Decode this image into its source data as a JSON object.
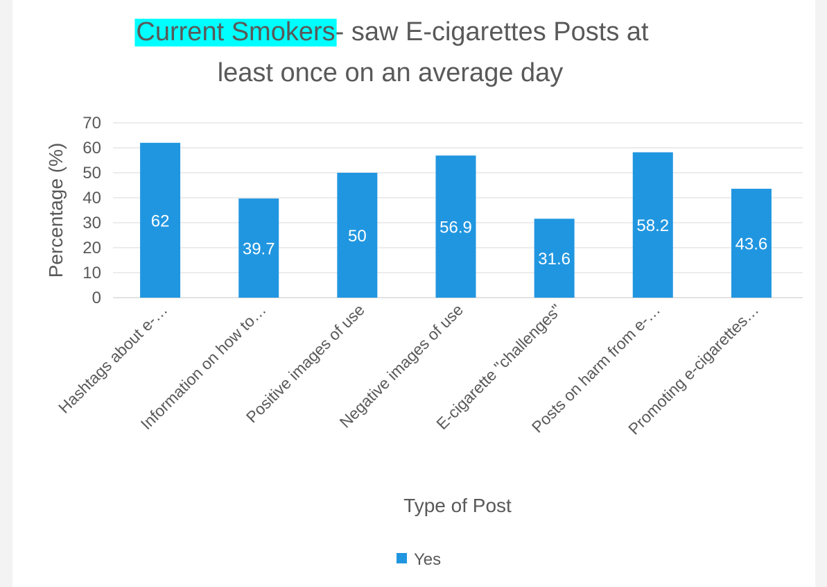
{
  "chart_data": {
    "type": "bar",
    "title_highlight": "Current Smokers",
    "title_rest_line1": "- saw E-cigarettes Posts at",
    "title_line2": "least once on an average day",
    "categories": [
      "Hashtags about e-…",
      "Information on how to…",
      "Positive images of use",
      "Negative images of use",
      "E-cigarette \"challenges\"",
      "Posts on harm from e-…",
      "Promoting e-cigarettes…"
    ],
    "series": [
      {
        "name": "Yes",
        "values": [
          62,
          39.7,
          50,
          56.9,
          31.6,
          58.2,
          43.6
        ]
      }
    ],
    "data_labels": [
      "62",
      "39.7",
      "50",
      "56.9",
      "31.6",
      "58.2",
      "43.6"
    ],
    "xlabel": "Type of Post",
    "ylabel": "Percentage (%)",
    "ylim": [
      0,
      70
    ],
    "yticks": [
      "0",
      "10",
      "20",
      "30",
      "40",
      "50",
      "60",
      "70"
    ],
    "grid": true,
    "legend": "bottom",
    "colors": {
      "bar": "#2196E0",
      "highlight": "#00FFFF",
      "grid": "#d9d9d9"
    }
  }
}
